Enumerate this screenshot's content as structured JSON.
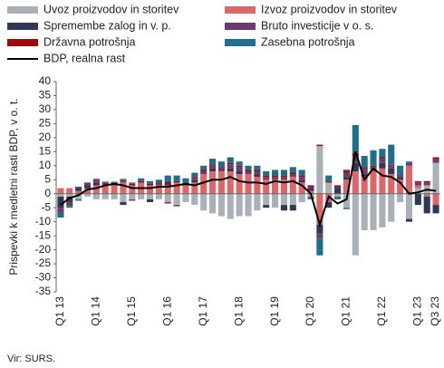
{
  "chart_data": {
    "type": "bar",
    "y_label": "Prispevki k medletni rasti BDP, v o. t.",
    "source": "Vir: SURS.",
    "categories": [
      "Q1 13",
      null,
      null,
      null,
      "Q1 14",
      null,
      null,
      null,
      "Q1 15",
      null,
      null,
      null,
      "Q1 16",
      null,
      null,
      null,
      "Q1 17",
      null,
      null,
      null,
      "Q1 18",
      null,
      null,
      null,
      "Q1 19",
      null,
      null,
      null,
      "Q1 20",
      null,
      null,
      null,
      "Q1 21",
      null,
      null,
      null,
      "Q1 22",
      null,
      null,
      null,
      "Q1 23",
      null,
      "Q3 23"
    ],
    "ylim": [
      -35,
      40
    ],
    "yticks": [
      -35,
      -30,
      -25,
      -20,
      -15,
      -10,
      -5,
      0,
      5,
      10,
      15,
      20,
      25,
      30,
      35,
      40
    ],
    "grid": false,
    "series": [
      {
        "name": "Uvoz proizvodov in storitev",
        "color": "#a9b0b7",
        "values": [
          -1,
          -1,
          -2,
          -1,
          -2,
          -2,
          -2,
          -3,
          -2,
          -2,
          -2,
          -2,
          -3,
          -4,
          -3,
          -4,
          -6,
          -7,
          -8,
          -9,
          -8,
          -8,
          -6,
          -4,
          -5,
          -4,
          -4,
          -3,
          -1,
          17,
          4,
          -1,
          -5,
          -22,
          -13,
          -13,
          -12,
          -10,
          -3,
          -9,
          2,
          3,
          11
        ]
      },
      {
        "name": "Izvoz proizvodov in storitev",
        "color": "#df6668",
        "values": [
          2,
          2,
          1,
          2,
          3,
          3,
          3,
          4,
          3,
          4,
          3,
          3,
          3,
          4,
          3,
          4,
          7,
          8,
          8,
          8,
          7,
          7,
          6,
          5,
          5,
          5,
          6,
          4,
          1,
          -11,
          -3,
          0,
          5,
          8,
          6,
          8,
          9,
          7,
          5,
          10,
          1,
          -1,
          -4
        ]
      },
      {
        "name": "Spremembe zalog in v. p.",
        "color": "#2e3a55",
        "values": [
          -4,
          -2,
          1,
          1,
          1,
          0,
          0,
          -1,
          0,
          0,
          -1,
          0,
          1,
          0,
          0,
          1,
          0,
          1,
          0,
          1,
          1,
          0,
          1,
          -1,
          0,
          -2,
          -2,
          1,
          1,
          -3,
          -2,
          2,
          1,
          3,
          1,
          0,
          2,
          2,
          1,
          -1,
          -4,
          -6,
          -3
        ]
      },
      {
        "name": "Bruto investicije v o. s.",
        "color": "#6e3b6e",
        "values": [
          -1,
          -0.5,
          0.5,
          1,
          1,
          0.5,
          0.5,
          0.5,
          -0.5,
          0,
          0,
          0.5,
          -0.5,
          -0.5,
          0,
          0.5,
          1,
          1,
          1,
          1.5,
          1.5,
          1,
          1,
          1,
          1,
          1,
          1,
          1,
          0.5,
          -2,
          0,
          0.5,
          1.5,
          2.5,
          2,
          1.5,
          1.5,
          1.5,
          1,
          1,
          1,
          1,
          1.5
        ]
      },
      {
        "name": "Državna potrošnja",
        "color": "#a00a0a",
        "values": [
          -0.5,
          -0.5,
          0,
          0,
          0.3,
          0.3,
          0.3,
          0.3,
          0.5,
          0.5,
          0.5,
          0.5,
          0.5,
          0.5,
          0.5,
          0.5,
          0.5,
          0.5,
          0.5,
          0.5,
          0.5,
          0.5,
          0.5,
          0.5,
          0.5,
          0.5,
          0.5,
          0.5,
          0.5,
          0.5,
          0.5,
          0.5,
          1,
          1,
          0.5,
          0.5,
          0.5,
          0,
          0,
          0,
          0.5,
          0.5,
          0.5
        ]
      },
      {
        "name": "Zasebna potrošnja",
        "color": "#1d6f8c",
        "values": [
          -2,
          -1,
          -0.5,
          0,
          0,
          0.5,
          0.5,
          0.5,
          0.5,
          1,
          1,
          1,
          2,
          2,
          2,
          1.5,
          1.5,
          2,
          2,
          2,
          1.5,
          1.5,
          1.5,
          1.5,
          2,
          2,
          2,
          2,
          -1,
          -6,
          2,
          -1,
          -0.5,
          10,
          4,
          5.5,
          3,
          7,
          3,
          0.5,
          0,
          0,
          0
        ]
      }
    ],
    "line": {
      "name": "BDP, realna rast",
      "color": "#000000",
      "values": [
        -4,
        -1.5,
        -0.5,
        1.5,
        2,
        3,
        3.5,
        3,
        2,
        2,
        2,
        2.5,
        2.5,
        3,
        3.5,
        3,
        4,
        5,
        5,
        6,
        4.5,
        4,
        4,
        3.5,
        4.5,
        4,
        4.5,
        3,
        0,
        -11,
        -1,
        -3.5,
        -2,
        15,
        5,
        9,
        6.5,
        6,
        4,
        0,
        0.5,
        1.5,
        1
      ]
    }
  }
}
